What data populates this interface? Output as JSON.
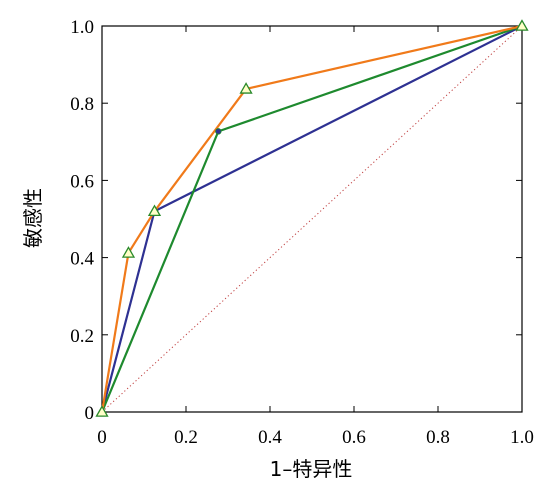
{
  "chart_data": {
    "type": "line",
    "xlabel": "1–特异性",
    "ylabel": "敏感性",
    "xlim": [
      0,
      1
    ],
    "ylim": [
      0,
      1
    ],
    "x_ticks": [
      "0",
      "0.2",
      "0.4",
      "0.6",
      "0.8",
      "1.0"
    ],
    "y_ticks": [
      "0",
      "0.2",
      "0.4",
      "0.6",
      "0.8",
      "1.0"
    ],
    "grid": false,
    "reference_line": {
      "from": [
        0,
        0
      ],
      "to": [
        1,
        1
      ],
      "style": "dotted",
      "color": "#c04040"
    },
    "series": [
      {
        "color": "#2e3192",
        "marker": "circle",
        "points": [
          [
            0,
            0
          ],
          [
            0.125,
            0.52
          ],
          [
            1.0,
            1.0
          ]
        ]
      },
      {
        "color": "#1e8a2e",
        "marker": "circle",
        "points": [
          [
            0,
            0
          ],
          [
            0.277,
            0.727
          ],
          [
            1.0,
            1.0
          ]
        ]
      },
      {
        "color": "#f07a1a",
        "marker": "triangle",
        "points": [
          [
            0,
            0
          ],
          [
            0.063,
            0.412
          ],
          [
            0.125,
            0.52
          ],
          [
            0.343,
            0.837
          ],
          [
            1.0,
            1.0
          ]
        ]
      }
    ]
  }
}
